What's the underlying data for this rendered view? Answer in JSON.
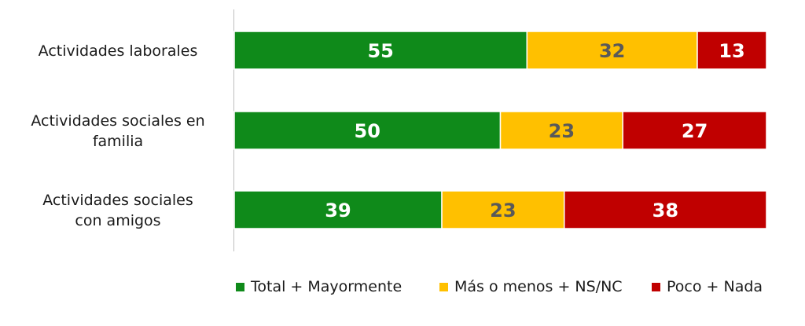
{
  "chart_data": {
    "type": "bar",
    "orientation": "horizontal",
    "stacked": true,
    "categories": [
      [
        "Actividades laborales"
      ],
      [
        "Actividades sociales en",
        "familia"
      ],
      [
        "Actividades sociales",
        "con amigos"
      ]
    ],
    "series": [
      {
        "name": "Total + Mayormente",
        "values": [
          55,
          50,
          39
        ],
        "color": "#0f8a1a",
        "label_color": "#ffffff"
      },
      {
        "name": "Más o menos + NS/NC",
        "values": [
          32,
          23,
          23
        ],
        "color": "#ffc000",
        "label_color": "#595959"
      },
      {
        "name": "Poco + Nada",
        "values": [
          13,
          27,
          38
        ],
        "color": "#c00000",
        "label_color": "#ffffff"
      }
    ],
    "xlim": [
      0,
      100
    ],
    "legend_position": "bottom",
    "grid": false
  }
}
